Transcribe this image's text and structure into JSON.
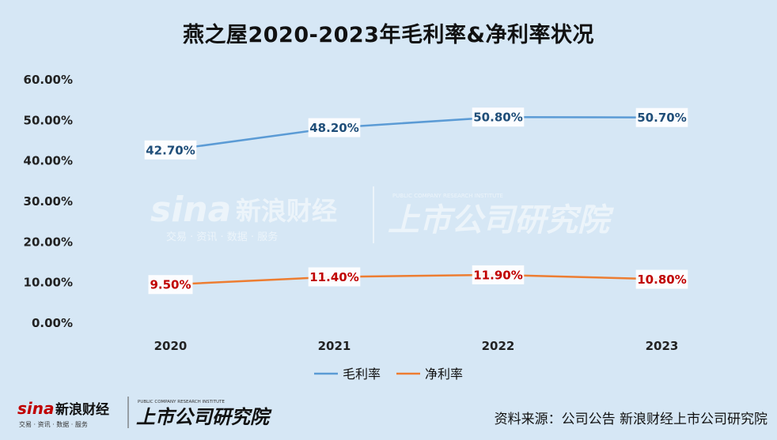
{
  "chart_data": {
    "type": "line",
    "title": "燕之屋2020-2023年毛利率&净利率状况",
    "categories": [
      "2020",
      "2021",
      "2022",
      "2023"
    ],
    "series": [
      {
        "name": "毛利率",
        "values": [
          42.7,
          48.2,
          50.8,
          50.7
        ],
        "labels": [
          "42.70%",
          "48.20%",
          "50.80%",
          "50.70%"
        ],
        "color": "#5b9bd5",
        "label_color": "#1f4e79"
      },
      {
        "name": "净利率",
        "values": [
          9.5,
          11.4,
          11.9,
          10.8
        ],
        "labels": [
          "9.50%",
          "11.40%",
          "11.90%",
          "10.80%"
        ],
        "color": "#ed7d31",
        "label_color": "#c00000"
      }
    ],
    "ylim": [
      0,
      60
    ],
    "y_ticks": [
      "0.00%",
      "10.00%",
      "20.00%",
      "30.00%",
      "40.00%",
      "50.00%",
      "60.00%"
    ],
    "legend_position": "bottom",
    "grid": false
  },
  "watermark": {
    "logo_text": "sina",
    "name": "新浪财经",
    "tagline": "交易 · 资讯 · 数据 · 服务",
    "brand": "上市公司研究院",
    "brand_sub": "PUBLIC COMPANY RESEARCH INSTITUTE"
  },
  "footer": {
    "logo_text": "sina",
    "name": "新浪财经",
    "tagline": "交易 · 资讯 · 数据 · 服务",
    "brand": "上市公司研究院",
    "brand_sub": "PUBLIC COMPANY RESEARCH INSTITUTE",
    "source": "资料来源：公司公告 新浪财经上市公司研究院"
  }
}
